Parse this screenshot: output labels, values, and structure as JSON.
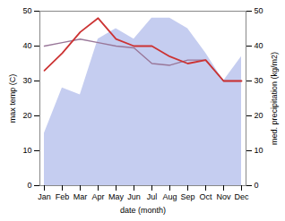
{
  "chart_data": {
    "type": "line",
    "xlabel": "date (month)",
    "ylabel": "max temp (C)",
    "y2label": "med. precipitation (kg/m2)",
    "categories": [
      "Jan",
      "Feb",
      "Mar",
      "Apr",
      "May",
      "Jun",
      "Jul",
      "Aug",
      "Sep",
      "Oct",
      "Nov",
      "Dec"
    ],
    "series": [
      {
        "type": "area",
        "axis": "y2",
        "color": "#c5cdf0",
        "values": [
          15,
          28,
          26,
          42,
          45,
          42,
          48,
          48,
          45,
          38,
          30,
          37
        ]
      },
      {
        "type": "line",
        "axis": "y2",
        "color": "#997799",
        "values": [
          40,
          41,
          42,
          41,
          40,
          39.5,
          35,
          34.5,
          36,
          36,
          30,
          30
        ]
      },
      {
        "type": "line",
        "color": "#cc3333",
        "values": [
          33,
          38,
          44,
          48,
          42,
          40,
          40,
          37,
          35,
          36,
          30,
          30
        ]
      }
    ],
    "ylim": [
      0,
      50
    ],
    "yticks": [
      0,
      10,
      20,
      30,
      40,
      50
    ],
    "y2lim": [
      0,
      50
    ],
    "y2ticks": [
      0,
      10,
      20,
      30,
      40,
      50
    ]
  }
}
